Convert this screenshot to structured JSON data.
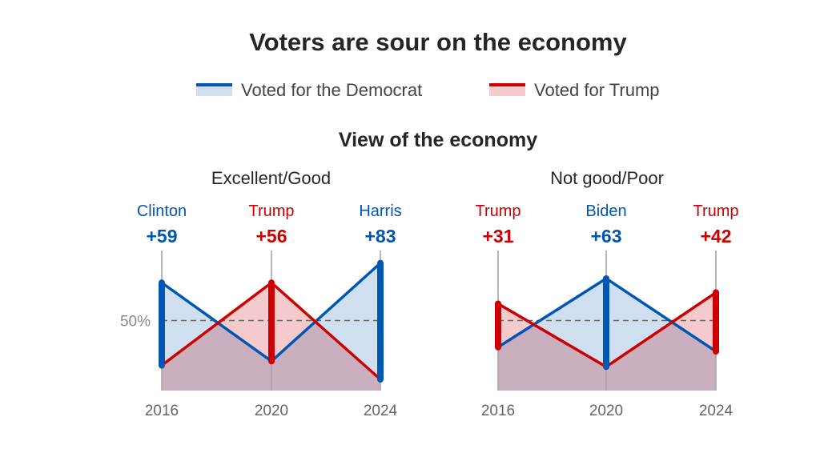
{
  "title": "Voters are sour on the economy",
  "legend": [
    {
      "label": "Voted for the Democrat",
      "color": "#0057b3"
    },
    {
      "label": "Voted for Trump",
      "color": "#cc0000"
    }
  ],
  "subtitle": "View of the economy",
  "colors": {
    "dem": "#0057b3",
    "rep": "#cc0000",
    "dem_fill": "#cfdff0",
    "rep_fill": "#f4cacc",
    "overlap_fill": "#cab0be"
  },
  "chart_data": [
    {
      "type": "area",
      "title": "Excellent/Good",
      "x": [
        "2016",
        "2020",
        "2024"
      ],
      "ylim": [
        0,
        100
      ],
      "reference_line": {
        "value": 50,
        "label": "50%"
      },
      "series": [
        {
          "name": "Voted for the Democrat",
          "values": [
            77,
            21,
            91
          ]
        },
        {
          "name": "Voted for Trump",
          "values": [
            18,
            77,
            8
          ]
        }
      ],
      "annotations": [
        {
          "winner": "Clinton",
          "margin": "+59",
          "party": "dem"
        },
        {
          "winner": "Trump",
          "margin": "+56",
          "party": "rep"
        },
        {
          "winner": "Harris",
          "margin": "+83",
          "party": "dem"
        }
      ]
    },
    {
      "type": "area",
      "title": "Not good/Poor",
      "x": [
        "2016",
        "2020",
        "2024"
      ],
      "ylim": [
        0,
        100
      ],
      "reference_line": {
        "value": 50,
        "label": ""
      },
      "series": [
        {
          "name": "Voted for the Democrat",
          "values": [
            31,
            80,
            28
          ]
        },
        {
          "name": "Voted for Trump",
          "values": [
            62,
            17,
            70
          ]
        }
      ],
      "annotations": [
        {
          "winner": "Trump",
          "margin": "+31",
          "party": "rep"
        },
        {
          "winner": "Biden",
          "margin": "+63",
          "party": "dem"
        },
        {
          "winner": "Trump",
          "margin": "+42",
          "party": "rep"
        }
      ]
    }
  ]
}
